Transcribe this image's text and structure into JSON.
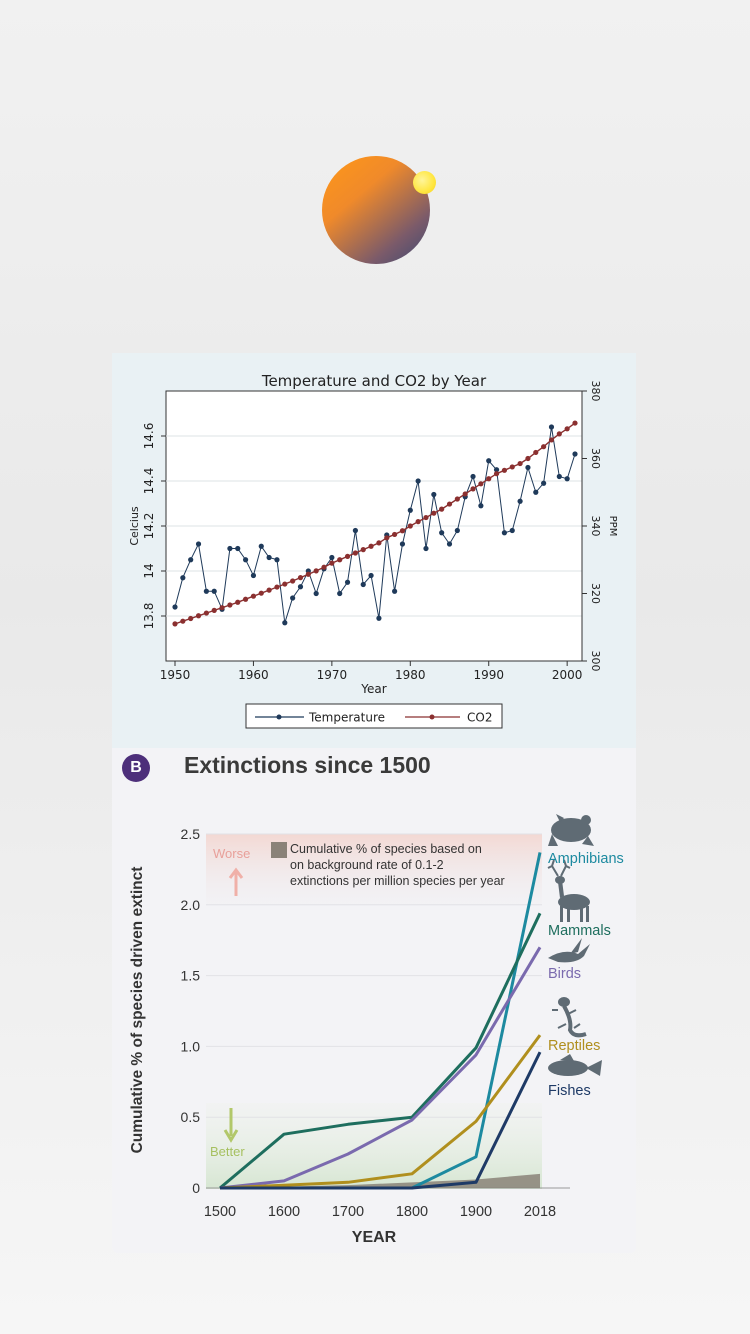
{
  "logo": {
    "icon": "orb-logo-icon"
  },
  "chart_data": [
    {
      "type": "line",
      "title": "Temperature and CO2 by Year",
      "xlabel": "Year",
      "ylabel_left": "Celcius",
      "ylabel_right": "PPM",
      "xlim": [
        1950,
        2001
      ],
      "ylim_left": [
        13.6,
        14.8
      ],
      "ylim_right": [
        300,
        380
      ],
      "x_ticks": [
        "1950",
        "1960",
        "1970",
        "1980",
        "1990",
        "2000"
      ],
      "y_ticks_left": [
        "13.8",
        "14",
        "14.2",
        "14.4",
        "14.6"
      ],
      "y_ticks_right": [
        "300",
        "320",
        "340",
        "360",
        "380"
      ],
      "grid": true,
      "legend_position": "bottom",
      "x": [
        1950,
        1951,
        1952,
        1953,
        1954,
        1955,
        1956,
        1957,
        1958,
        1959,
        1960,
        1961,
        1962,
        1963,
        1964,
        1965,
        1966,
        1967,
        1968,
        1969,
        1970,
        1971,
        1972,
        1973,
        1974,
        1975,
        1976,
        1977,
        1978,
        1979,
        1980,
        1981,
        1982,
        1983,
        1984,
        1985,
        1986,
        1987,
        1988,
        1989,
        1990,
        1991,
        1992,
        1993,
        1994,
        1995,
        1996,
        1997,
        1998,
        1999,
        2000,
        2001
      ],
      "series": [
        {
          "name": "Temperature",
          "axis": "left",
          "color": "#1f3a5a",
          "values": [
            13.84,
            13.97,
            14.05,
            14.12,
            13.91,
            13.91,
            13.83,
            14.1,
            14.1,
            14.05,
            13.98,
            14.11,
            14.06,
            14.05,
            13.77,
            13.88,
            13.93,
            14.0,
            13.9,
            14.01,
            14.06,
            13.9,
            13.95,
            14.18,
            13.94,
            13.98,
            13.79,
            14.16,
            13.91,
            14.12,
            14.27,
            14.4,
            14.1,
            14.34,
            14.17,
            14.12,
            14.18,
            14.33,
            14.42,
            14.29,
            14.49,
            14.45,
            14.17,
            14.18,
            14.31,
            14.46,
            14.35,
            14.39,
            14.64,
            14.42,
            14.41,
            14.52
          ]
        },
        {
          "name": "CO2",
          "axis": "right",
          "color": "#8b3030",
          "values": [
            311,
            311.8,
            312.6,
            313.4,
            314.2,
            315,
            315.8,
            316.6,
            317.4,
            318.3,
            319.2,
            320.1,
            321,
            321.9,
            322.8,
            323.7,
            324.7,
            325.7,
            326.7,
            327.8,
            329,
            330,
            331,
            332,
            333,
            334,
            335,
            336.5,
            337.5,
            338.6,
            340,
            341.3,
            342.5,
            343.8,
            345,
            346.5,
            348,
            349.5,
            351,
            352.5,
            354,
            355.5,
            356.5,
            357.5,
            358.5,
            360,
            361.8,
            363.5,
            365.5,
            367.3,
            368.8,
            370.5
          ]
        }
      ]
    },
    {
      "type": "line",
      "badge": "B",
      "title": "Extinctions since 1500",
      "xlabel": "YEAR",
      "ylabel": "Cumulative % of species driven extinct",
      "categories": [
        "1500",
        "1600",
        "1700",
        "1800",
        "1900",
        "2018"
      ],
      "ylim": [
        0,
        2.5
      ],
      "y_ticks": [
        "0",
        "0.5",
        "1.0",
        "1.5",
        "2.0",
        "2.5"
      ],
      "annotations": {
        "legend_text": "Cumulative % of species based on on background rate of 0.1-2 extinctions per million species per year",
        "legend_lines": [
          "Cumulative % of species based on",
          "on background rate of 0.1-2",
          "extinctions per million species per year"
        ],
        "worse_label": "Worse",
        "better_label": "Better"
      },
      "background_rate": {
        "color": "#8a8278",
        "values": [
          0,
          0.01,
          0.02,
          0.04,
          0.06,
          0.1
        ]
      },
      "series": [
        {
          "name": "Amphibians",
          "color": "#1d8aa0",
          "icon": "frog-icon",
          "values": [
            0,
            0,
            0,
            0,
            0.22,
            2.37
          ]
        },
        {
          "name": "Mammals",
          "color": "#1e6e5e",
          "icon": "deer-icon",
          "values": [
            0,
            0.38,
            0.45,
            0.5,
            0.99,
            1.94
          ]
        },
        {
          "name": "Birds",
          "color": "#7a6aae",
          "icon": "bird-icon",
          "values": [
            0,
            0.05,
            0.24,
            0.48,
            0.94,
            1.7
          ]
        },
        {
          "name": "Reptiles",
          "color": "#b08f1e",
          "icon": "lizard-icon",
          "values": [
            0,
            0.02,
            0.04,
            0.1,
            0.47,
            1.08
          ]
        },
        {
          "name": "Fishes",
          "color": "#1e3a66",
          "icon": "fish-icon",
          "values": [
            0,
            0,
            0,
            0,
            0.04,
            0.96
          ]
        }
      ]
    }
  ]
}
